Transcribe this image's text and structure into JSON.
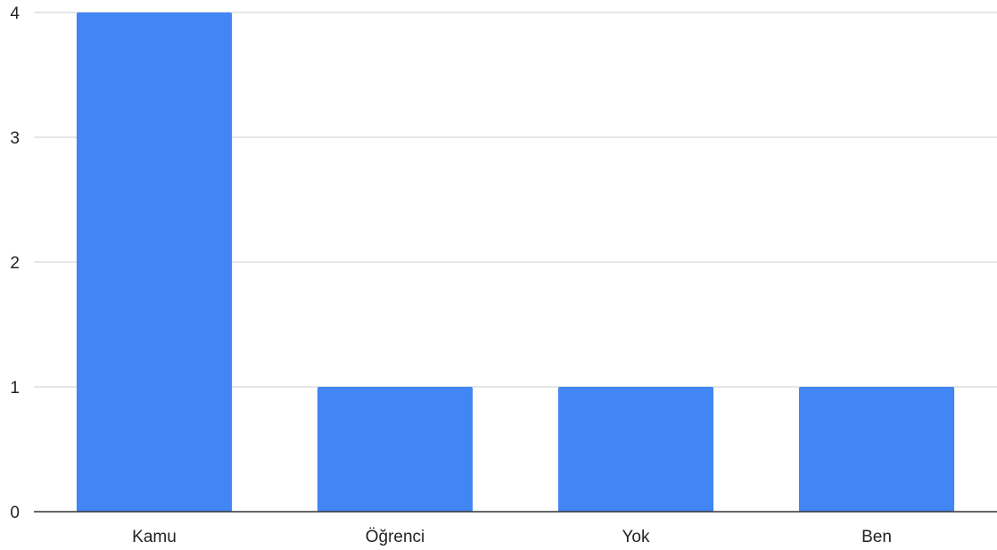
{
  "chart_data": {
    "type": "bar",
    "categories": [
      "Kamu",
      "Öğrenci",
      "Yok",
      "Ben"
    ],
    "values": [
      4,
      1,
      1,
      1
    ],
    "title": "",
    "xlabel": "",
    "ylabel": "",
    "ylim": [
      0,
      4
    ],
    "yticks": [
      "0",
      "1",
      "2",
      "3",
      "4"
    ],
    "grid": true,
    "legend": "none"
  },
  "colors": {
    "bar": "#4285f4",
    "gridline": "#cccccc",
    "axis": "#333333"
  }
}
